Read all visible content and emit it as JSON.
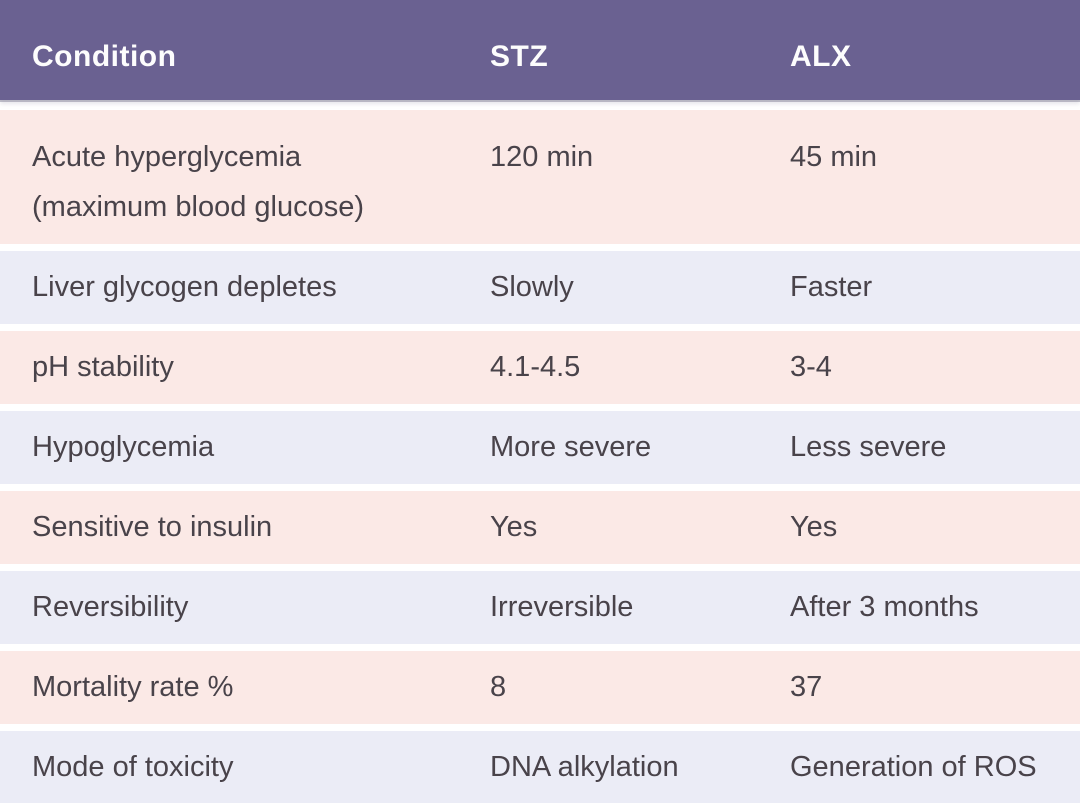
{
  "table": {
    "header": {
      "condition": "Condition",
      "stz": "STZ",
      "alx": "ALX"
    },
    "rows": [
      {
        "condition": "Acute hyperglycemia\n(maximum blood glucose)",
        "stz": "120 min",
        "alx": "45 min"
      },
      {
        "condition": "Liver glycogen depletes",
        "stz": "Slowly",
        "alx": "Faster"
      },
      {
        "condition": "pH stability",
        "stz": "4.1-4.5",
        "alx": "3-4"
      },
      {
        "condition": "Hypoglycemia",
        "stz": "More severe",
        "alx": "Less severe"
      },
      {
        "condition": "Sensitive to insulin",
        "stz": "Yes",
        "alx": "Yes"
      },
      {
        "condition": "Reversibility",
        "stz": "Irreversible",
        "alx": "After 3 months"
      },
      {
        "condition": "Mortality rate %",
        "stz": "8",
        "alx": "37"
      },
      {
        "condition": "Mode of toxicity",
        "stz": "DNA alkylation",
        "alx": "Generation of ROS"
      }
    ]
  },
  "colors": {
    "header_bg": "#6a6191",
    "header_text": "#fdfdfd",
    "row_pink": "#fbe9e6",
    "row_lavender": "#ebecf6",
    "body_text": "#49434a"
  }
}
